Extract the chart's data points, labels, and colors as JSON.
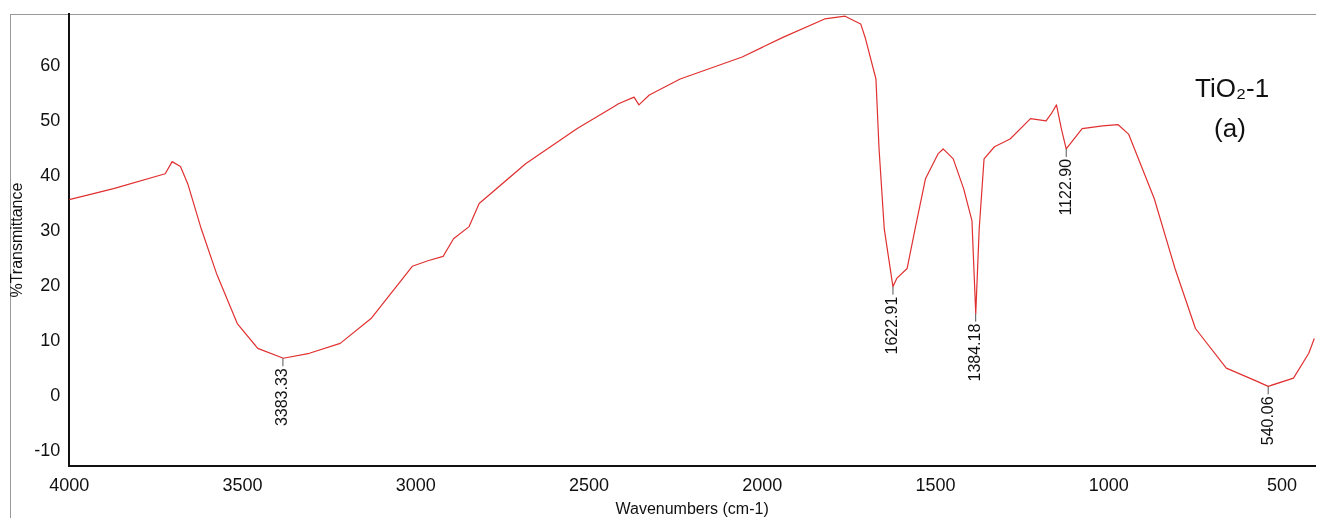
{
  "chart_data": {
    "type": "line",
    "xlabel": "Wavenumbers (cm-1)",
    "ylabel": "%Transmittance",
    "x": [
      4000,
      3872,
      3723,
      3703,
      3679,
      3658,
      3619,
      3575,
      3515,
      3456,
      3382,
      3307,
      3218,
      3129,
      3010,
      2965,
      2921,
      2891,
      2846,
      2817,
      2683,
      2534,
      2430,
      2415,
      2370,
      2356,
      2326,
      2237,
      2058,
      1939,
      1820,
      1761,
      1716,
      1702,
      1672,
      1663,
      1648,
      1623,
      1612,
      1582,
      1559,
      1529,
      1493,
      1478,
      1449,
      1419,
      1395,
      1384,
      1374,
      1360,
      1330,
      1285,
      1226,
      1181,
      1166,
      1151,
      1137,
      1123,
      1107,
      1077,
      1018,
      973,
      943,
      869,
      809,
      750,
      661,
      572,
      540,
      467,
      423,
      407
    ],
    "series": [
      {
        "color": "#e03030",
        "values": [
          35.7,
          37.7,
          40.4,
          42.6,
          41.7,
          38.6,
          30.4,
          22.3,
          13.2,
          8.7,
          6.9,
          7.8,
          9.6,
          14.1,
          23.6,
          24.6,
          25.4,
          28.6,
          30.8,
          35.0,
          42.2,
          48.6,
          52.5,
          53.1,
          54.3,
          52.9,
          54.7,
          57.6,
          61.6,
          65.2,
          68.5,
          69.0,
          67.6,
          64.9,
          57.6,
          44.9,
          30.4,
          19.9,
          21.4,
          23.2,
          30.4,
          39.5,
          44.0,
          44.9,
          43.1,
          37.7,
          31.9,
          15.0,
          30.4,
          43.1,
          45.3,
          46.7,
          50.4,
          50.0,
          51.3,
          52.9,
          48.6,
          44.9,
          46.2,
          48.6,
          49.1,
          49.3,
          47.6,
          35.9,
          23.2,
          12.3,
          5.1,
          2.7,
          1.8,
          3.3,
          7.8,
          10.5
        ]
      }
    ],
    "xlim": [
      4000,
      405
    ],
    "xticks": [
      4000,
      3500,
      3000,
      2500,
      2000,
      1500,
      1000,
      500
    ],
    "ylim": [
      -12.7,
      69.4
    ],
    "yticks": [
      -10,
      0,
      10,
      20,
      30,
      40,
      50,
      60
    ],
    "grid": false,
    "legend": false,
    "marker": "none",
    "line_style": "solid",
    "annotations": [
      {
        "text": "3383.33",
        "x": 3383.33,
        "y": 6.9
      },
      {
        "text": "1622.91",
        "x": 1622.91,
        "y": 19.9
      },
      {
        "text": "1384.18",
        "x": 1384.18,
        "y": 15.0
      },
      {
        "text": "1122.90",
        "x": 1122.9,
        "y": 44.9
      },
      {
        "text": "540.06",
        "x": 540.06,
        "y": 1.8
      },
      "TiO₂-1 (a)"
    ]
  }
}
